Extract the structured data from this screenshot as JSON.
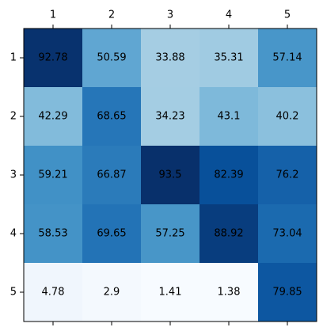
{
  "chart_data": {
    "type": "heatmap",
    "x_categories": [
      "1",
      "2",
      "3",
      "4",
      "5"
    ],
    "y_categories": [
      "1",
      "2",
      "3",
      "4",
      "5"
    ],
    "values": [
      [
        92.78,
        50.59,
        33.88,
        35.31,
        57.14
      ],
      [
        42.29,
        68.65,
        34.23,
        43.1,
        40.2
      ],
      [
        59.21,
        66.87,
        93.5,
        82.39,
        76.2
      ],
      [
        58.53,
        69.65,
        57.25,
        88.92,
        73.04
      ],
      [
        4.78,
        2.9,
        1.41,
        1.38,
        79.85
      ]
    ],
    "value_labels": [
      [
        "92.78",
        "50.59",
        "33.88",
        "35.31",
        "57.14"
      ],
      [
        "42.29",
        "68.65",
        "34.23",
        "43.1",
        "40.2"
      ],
      [
        "59.21",
        "66.87",
        "93.5",
        "82.39",
        "76.2"
      ],
      [
        "58.53",
        "69.65",
        "57.25",
        "88.92",
        "73.04"
      ],
      [
        "4.78",
        "2.9",
        "1.41",
        "1.38",
        "79.85"
      ]
    ],
    "colormap": "Blues",
    "x_axis_position": "top-and-bottom",
    "grid": false,
    "colors": {
      "axis": "#000000",
      "label_text": "#000000"
    }
  }
}
